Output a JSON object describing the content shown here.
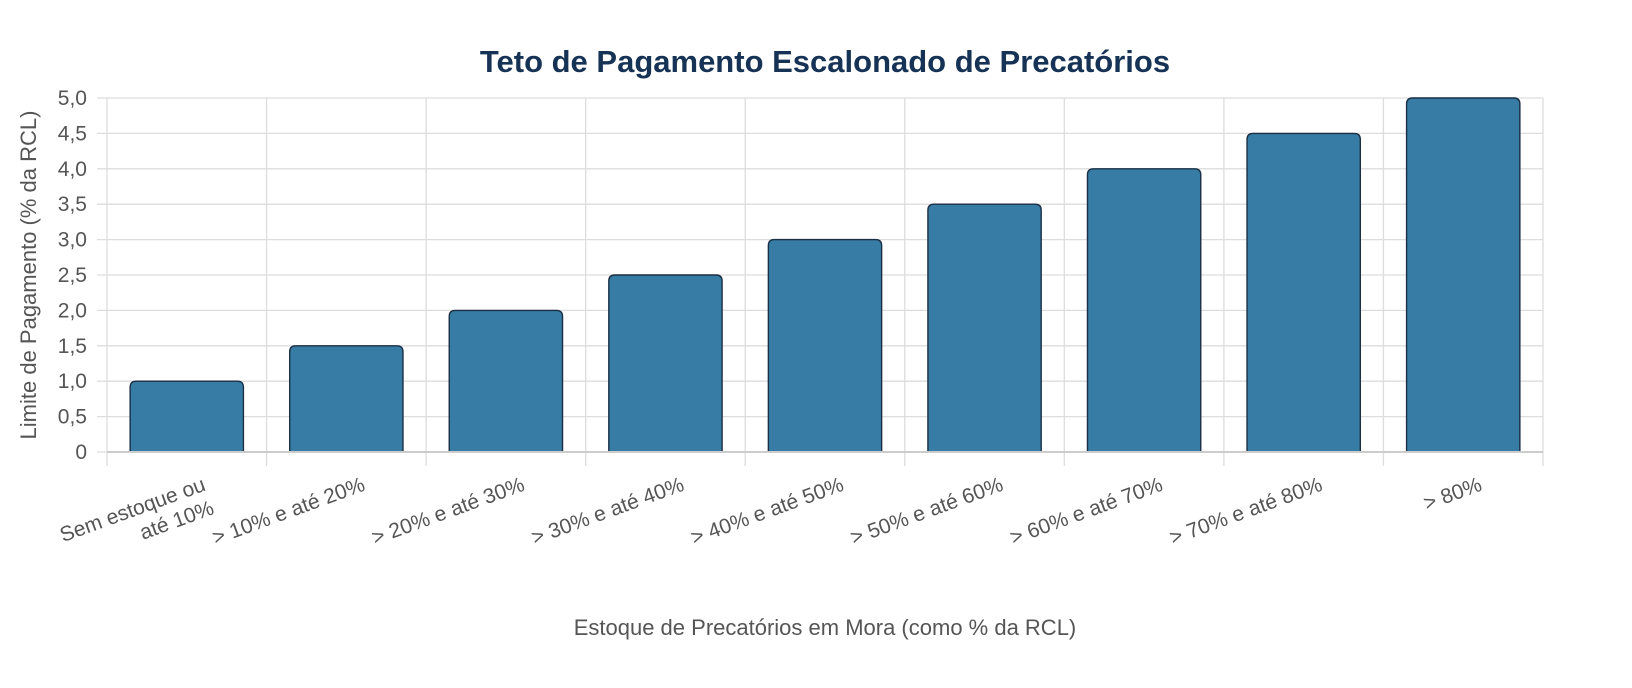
{
  "chart_data": {
    "type": "bar",
    "title": "Teto de Pagamento Escalonado de Precatórios",
    "xlabel": "Estoque de Precatórios em Mora (como % da RCL)",
    "ylabel": "Limite de Pagamento (% da RCL)",
    "categories": [
      [
        "Sem estoque ou",
        "até 10%"
      ],
      [
        "> 10% e até 20%"
      ],
      [
        "> 20% e até 30%"
      ],
      [
        "> 30% e até 40%"
      ],
      [
        "> 40% e até 50%"
      ],
      [
        "> 50% e até 60%"
      ],
      [
        "> 60% e até 70%"
      ],
      [
        "> 70% e até 80%"
      ],
      [
        "> 80%"
      ]
    ],
    "values": [
      1.0,
      1.5,
      2.0,
      2.5,
      3.0,
      3.5,
      4.0,
      4.5,
      5.0
    ],
    "ylim": [
      0,
      5
    ],
    "yticks": [
      0,
      0.5,
      1,
      1.5,
      2,
      2.5,
      3,
      3.5,
      4,
      4.5,
      5
    ],
    "ytick_labels": [
      "0",
      "0,5",
      "1,0",
      "1,5",
      "2,0",
      "2,5",
      "3,0",
      "3,5",
      "4,0",
      "4,5",
      "5,0"
    ],
    "grid": true,
    "legend": "none",
    "colors": {
      "bar_fill": "#377ca4",
      "bar_stroke": "#1b2f45",
      "title": "#163356",
      "grid": "#dddddd",
      "axis": "#cccccc",
      "text": "#555555"
    }
  }
}
